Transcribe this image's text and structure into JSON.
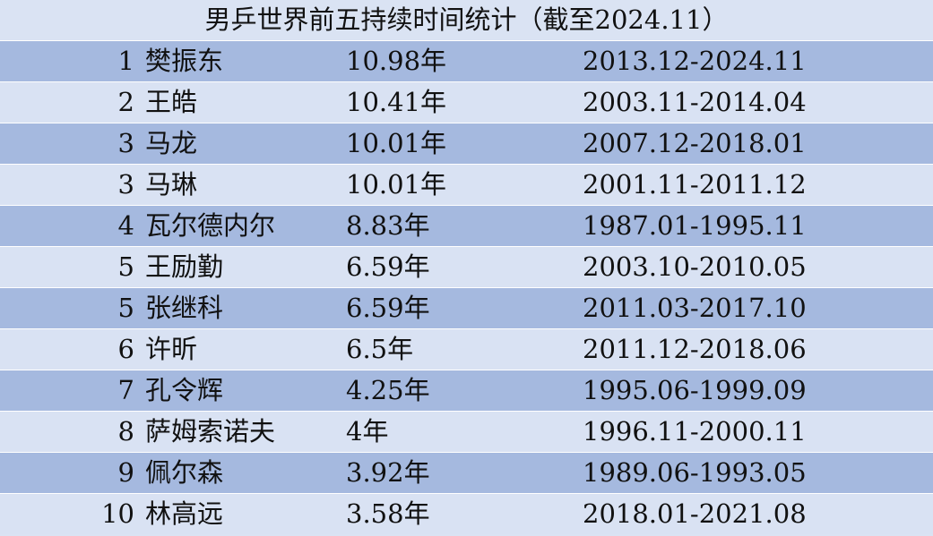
{
  "title": "男乒世界前五持续时间统计（截至2024.11）",
  "table": {
    "rows": [
      {
        "rank": "1",
        "name": "樊振东",
        "duration": "10.98年",
        "period": "2013.12-2024.11"
      },
      {
        "rank": "2",
        "name": "王皓",
        "duration": "10.41年",
        "period": "2003.11-2014.04"
      },
      {
        "rank": "3",
        "name": "马龙",
        "duration": "10.01年",
        "period": "2007.12-2018.01"
      },
      {
        "rank": "3",
        "name": "马琳",
        "duration": "10.01年",
        "period": "2001.11-2011.12"
      },
      {
        "rank": "4",
        "name": "瓦尔德内尔",
        "duration": "8.83年",
        "period": "1987.01-1995.11"
      },
      {
        "rank": "5",
        "name": "王励勤",
        "duration": "6.59年",
        "period": "2003.10-2010.05"
      },
      {
        "rank": "5",
        "name": "张继科",
        "duration": "6.59年",
        "period": "2011.03-2017.10"
      },
      {
        "rank": "6",
        "name": "许昕",
        "duration": "6.5年",
        "period": "2011.12-2018.06"
      },
      {
        "rank": "7",
        "name": "孔令辉",
        "duration": "4.25年",
        "period": "1995.06-1999.09"
      },
      {
        "rank": "8",
        "name": "萨姆索诺夫",
        "duration": "4年",
        "period": "1996.11-2000.11"
      },
      {
        "rank": "9",
        "name": "佩尔森",
        "duration": "3.92年",
        "period": "1989.06-1993.05"
      },
      {
        "rank": "10",
        "name": "林高远",
        "duration": "3.58年",
        "period": "2018.01-2021.08"
      }
    ]
  }
}
